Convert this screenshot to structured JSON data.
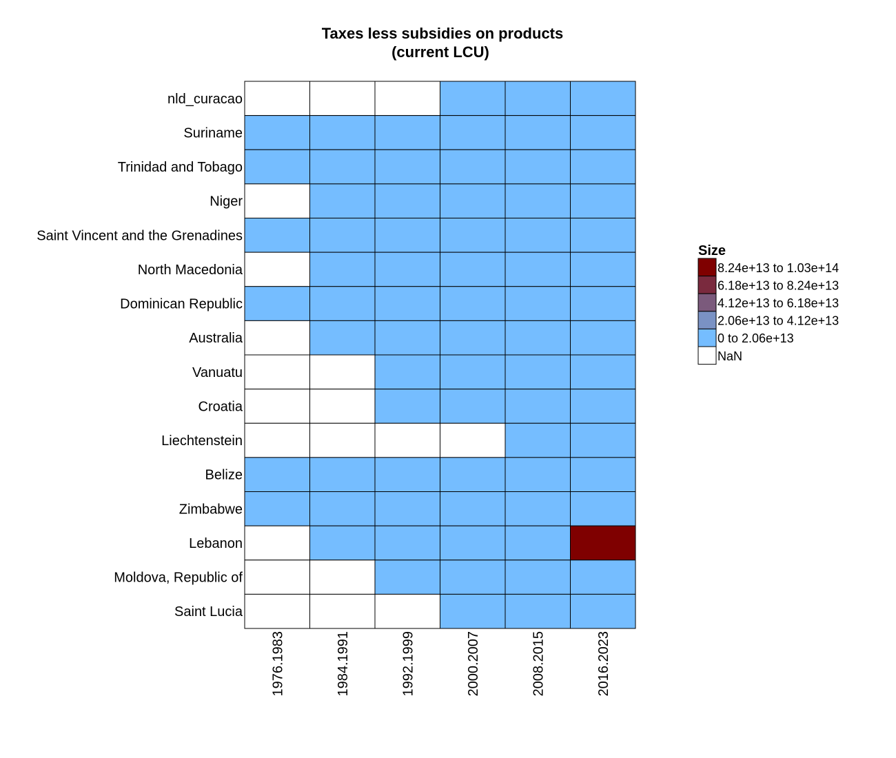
{
  "chart_data": {
    "type": "heatmap",
    "title": "Taxes less subsidies on products",
    "subtitle": "(current LCU)",
    "xlabel": "",
    "ylabel": "",
    "x_categories": [
      "1976.1983",
      "1984.1991",
      "1992.1999",
      "2000.2007",
      "2008.2015",
      "2016.2023"
    ],
    "y_categories": [
      "nld_curacao",
      "Suriname",
      "Trinidad and Tobago",
      "Niger",
      "Saint Vincent and the Grenadines",
      "North Macedonia",
      "Dominican Republic",
      "Australia",
      "Vanuatu",
      "Croatia",
      "Liechtenstein",
      "Belize",
      "Zimbabwe",
      "Lebanon",
      "Moldova, Republic of",
      "Saint Lucia"
    ],
    "bins": [
      {
        "label": "8.24e+13 to 1.03e+14",
        "color": "#7f0000"
      },
      {
        "label": "6.18e+13 to 8.24e+13",
        "color": "#7a2a3e"
      },
      {
        "label": "4.12e+13 to 6.18e+13",
        "color": "#7b5a7c"
      },
      {
        "label": "2.06e+13 to 4.12e+13",
        "color": "#7a92c4"
      },
      {
        "label": "0 to 2.06e+13",
        "color": "#75bdff"
      },
      {
        "label": "NaN",
        "color": "#ffffff"
      }
    ],
    "cell_bins": [
      [
        "NaN",
        "NaN",
        "NaN",
        "0 to 2.06e+13",
        "0 to 2.06e+13",
        "0 to 2.06e+13"
      ],
      [
        "0 to 2.06e+13",
        "0 to 2.06e+13",
        "0 to 2.06e+13",
        "0 to 2.06e+13",
        "0 to 2.06e+13",
        "0 to 2.06e+13"
      ],
      [
        "0 to 2.06e+13",
        "0 to 2.06e+13",
        "0 to 2.06e+13",
        "0 to 2.06e+13",
        "0 to 2.06e+13",
        "0 to 2.06e+13"
      ],
      [
        "NaN",
        "0 to 2.06e+13",
        "0 to 2.06e+13",
        "0 to 2.06e+13",
        "0 to 2.06e+13",
        "0 to 2.06e+13"
      ],
      [
        "0 to 2.06e+13",
        "0 to 2.06e+13",
        "0 to 2.06e+13",
        "0 to 2.06e+13",
        "0 to 2.06e+13",
        "0 to 2.06e+13"
      ],
      [
        "NaN",
        "0 to 2.06e+13",
        "0 to 2.06e+13",
        "0 to 2.06e+13",
        "0 to 2.06e+13",
        "0 to 2.06e+13"
      ],
      [
        "0 to 2.06e+13",
        "0 to 2.06e+13",
        "0 to 2.06e+13",
        "0 to 2.06e+13",
        "0 to 2.06e+13",
        "0 to 2.06e+13"
      ],
      [
        "NaN",
        "0 to 2.06e+13",
        "0 to 2.06e+13",
        "0 to 2.06e+13",
        "0 to 2.06e+13",
        "0 to 2.06e+13"
      ],
      [
        "NaN",
        "NaN",
        "0 to 2.06e+13",
        "0 to 2.06e+13",
        "0 to 2.06e+13",
        "0 to 2.06e+13"
      ],
      [
        "NaN",
        "NaN",
        "0 to 2.06e+13",
        "0 to 2.06e+13",
        "0 to 2.06e+13",
        "0 to 2.06e+13"
      ],
      [
        "NaN",
        "NaN",
        "NaN",
        "NaN",
        "0 to 2.06e+13",
        "0 to 2.06e+13"
      ],
      [
        "0 to 2.06e+13",
        "0 to 2.06e+13",
        "0 to 2.06e+13",
        "0 to 2.06e+13",
        "0 to 2.06e+13",
        "0 to 2.06e+13"
      ],
      [
        "0 to 2.06e+13",
        "0 to 2.06e+13",
        "0 to 2.06e+13",
        "0 to 2.06e+13",
        "0 to 2.06e+13",
        "0 to 2.06e+13"
      ],
      [
        "NaN",
        "0 to 2.06e+13",
        "0 to 2.06e+13",
        "0 to 2.06e+13",
        "0 to 2.06e+13",
        "8.24e+13 to 1.03e+14"
      ],
      [
        "NaN",
        "NaN",
        "0 to 2.06e+13",
        "0 to 2.06e+13",
        "0 to 2.06e+13",
        "0 to 2.06e+13"
      ],
      [
        "NaN",
        "NaN",
        "NaN",
        "0 to 2.06e+13",
        "0 to 2.06e+13",
        "0 to 2.06e+13"
      ]
    ],
    "legend": {
      "title": "Size",
      "position": "right"
    },
    "grid": false
  }
}
